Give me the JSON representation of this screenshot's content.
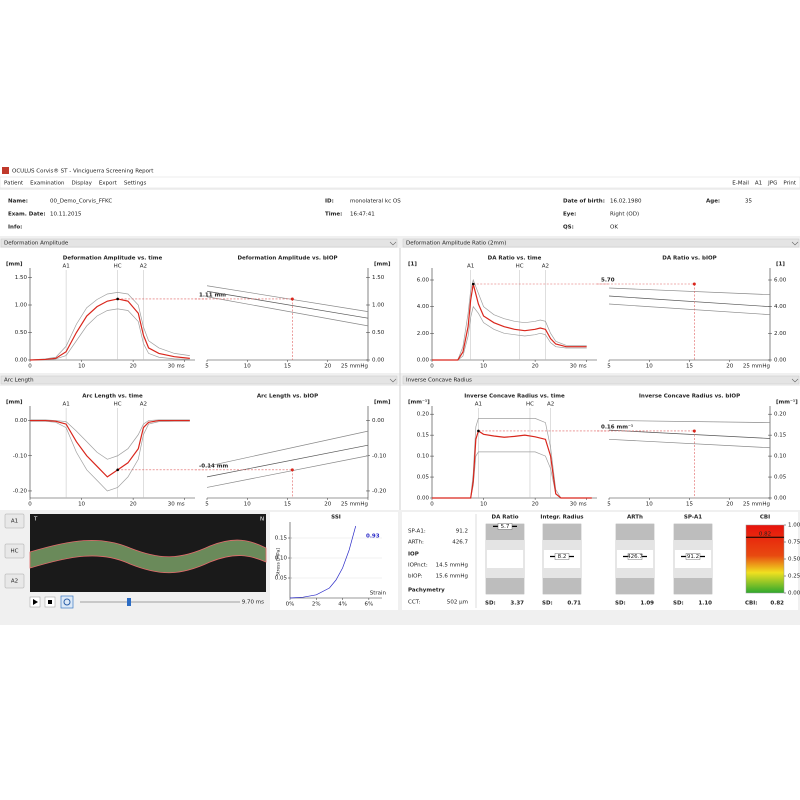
{
  "window": {
    "title": "OCULUS Corvis® ST - Vinciguerra Screening Report",
    "menu": [
      "Patient",
      "Examination",
      "Display",
      "Export",
      "Settings"
    ],
    "actions": [
      "E-Mail",
      "A1",
      "JPG",
      "Print"
    ]
  },
  "patient": {
    "name": {
      "label": "Name:",
      "value": "00_Demo_Corvis_FFKC"
    },
    "id": {
      "label": "ID:",
      "value": "monolateral kc OS"
    },
    "birth": {
      "label": "Date of birth:",
      "value": "16.02.1980"
    },
    "age": {
      "label": "Age:",
      "value": "35"
    },
    "exam_date": {
      "label": "Exam. Date:",
      "value": "10.11.2015"
    },
    "time": {
      "label": "Time:",
      "value": "16:47:41"
    },
    "eye": {
      "label": "Eye:",
      "value": "Right (OD)"
    },
    "info": {
      "label": "Info:"
    },
    "qs": {
      "label": "QS:",
      "value": "OK"
    }
  },
  "sections": [
    "Deformation Amplitude",
    "Deformation Amplitude Ratio (2mm)",
    "Arc Length",
    "Inverse Concave Radius"
  ],
  "chart_data": [
    {
      "type": "line",
      "title": "Deformation Amplitude vs. time",
      "y_label": "[mm]",
      "xlim": [
        0,
        32
      ],
      "ylim": [
        0,
        1.6
      ],
      "xticks": [
        0,
        10,
        20,
        {
          "value": 30,
          "label": "30 ms"
        }
      ],
      "yticks": [
        {
          "value": 0,
          "label": "0.00"
        },
        {
          "value": 0.5,
          "label": "0.50"
        },
        {
          "value": 1,
          "label": "1.00"
        },
        {
          "value": 1.5,
          "label": "1.50"
        }
      ],
      "x": [
        0,
        3,
        5,
        7,
        9,
        11,
        13,
        15,
        17,
        19,
        21,
        22,
        23,
        25,
        28,
        31
      ],
      "series": [
        {
          "color": "#a0a0a0",
          "values": [
            0,
            0.02,
            0.05,
            0.25,
            0.65,
            0.95,
            1.1,
            1.2,
            1.23,
            1.2,
            1.0,
            0.6,
            0.35,
            0.22,
            0.12,
            0.08
          ]
        },
        {
          "color": "#a0a0a0",
          "values": [
            0,
            0,
            0.02,
            0.08,
            0.35,
            0.62,
            0.8,
            0.9,
            0.93,
            0.9,
            0.7,
            0.3,
            0.12,
            0.05,
            0.02,
            0.01
          ]
        },
        {
          "color": "#d9261c",
          "values": [
            0,
            0.01,
            0.03,
            0.15,
            0.5,
            0.8,
            0.97,
            1.07,
            1.11,
            1.07,
            0.85,
            0.45,
            0.22,
            0.12,
            0.06,
            0.03
          ]
        }
      ],
      "events": [
        {
          "label": "A1",
          "x": 7
        },
        {
          "label": "HC",
          "x": 17
        },
        {
          "label": "A2",
          "x": 22
        }
      ],
      "annotation": {
        "label": "1.11 mm",
        "x": 17,
        "y": 1.11
      }
    },
    {
      "type": "line",
      "title": "Deformation Amplitude vs. bIOP",
      "y_label": "[mm]",
      "xlim": [
        5,
        25
      ],
      "ylim": [
        0,
        1.6
      ],
      "xticks": [
        5,
        10,
        15,
        20,
        {
          "value": 25,
          "label": "25 mmHg"
        }
      ],
      "yticks": [
        {
          "value": 0,
          "label": "0.00"
        },
        {
          "value": 0.5,
          "label": "0.50"
        },
        {
          "value": 1,
          "label": "1.00"
        },
        {
          "value": 1.5,
          "label": "1.50"
        }
      ],
      "x": [
        5,
        25
      ],
      "series": [
        {
          "color": "#888888",
          "values": [
            1.35,
            0.88
          ]
        },
        {
          "color": "#555555",
          "values": [
            1.25,
            0.76
          ]
        },
        {
          "color": "#888888",
          "values": [
            1.15,
            0.62
          ]
        }
      ],
      "point": {
        "x": 15.6,
        "y": 1.11
      }
    },
    {
      "type": "line",
      "title": "DA Ratio vs. time",
      "y_label": "[1]",
      "xlim": [
        0,
        32
      ],
      "ylim": [
        0,
        6.6
      ],
      "xticks": [
        0,
        10,
        20,
        {
          "value": 30,
          "label": "30 ms"
        }
      ],
      "yticks": [
        {
          "value": 0,
          "label": "0.00"
        },
        {
          "value": 2,
          "label": "2.00"
        },
        {
          "value": 4,
          "label": "4.00"
        },
        {
          "value": 6,
          "label": "6.00"
        }
      ],
      "x": [
        0,
        3,
        5,
        6,
        7,
        7.5,
        8,
        9,
        10,
        12,
        14,
        16,
        18,
        20,
        21,
        22,
        23,
        24,
        26,
        30
      ],
      "series": [
        {
          "color": "#a0a0a0",
          "values": [
            0,
            0,
            0,
            1.0,
            3.5,
            5.2,
            6.0,
            5.0,
            4.0,
            3.4,
            3.1,
            2.9,
            2.8,
            2.9,
            3.0,
            2.9,
            2.0,
            1.4,
            1.1,
            1.1
          ]
        },
        {
          "color": "#a0a0a0",
          "values": [
            0,
            0,
            0,
            0.3,
            1.8,
            3.2,
            4.0,
            3.5,
            2.8,
            2.3,
            2.0,
            1.9,
            1.8,
            1.9,
            2.0,
            1.9,
            1.3,
            1.0,
            0.9,
            0.9
          ]
        },
        {
          "color": "#d9261c",
          "values": [
            0,
            0,
            0,
            0.6,
            2.5,
            4.5,
            5.7,
            4.2,
            3.3,
            2.8,
            2.5,
            2.3,
            2.2,
            2.3,
            2.4,
            2.3,
            1.6,
            1.2,
            1.0,
            1.0
          ]
        }
      ],
      "events": [
        {
          "label": "A1",
          "x": 7.5
        },
        {
          "label": "HC",
          "x": 17
        },
        {
          "label": "A2",
          "x": 22
        }
      ],
      "annotation": {
        "label": "5.70",
        "x": 8,
        "y": 5.7
      }
    },
    {
      "type": "line",
      "title": "DA Ratio vs. bIOP",
      "y_label": "[1]",
      "xlim": [
        5,
        25
      ],
      "ylim": [
        0,
        6.6
      ],
      "xticks": [
        5,
        10,
        15,
        20,
        {
          "value": 25,
          "label": "25 mmHg"
        }
      ],
      "yticks": [
        {
          "value": 0,
          "label": "0.00"
        },
        {
          "value": 2,
          "label": "2.00"
        },
        {
          "value": 4,
          "label": "4.00"
        },
        {
          "value": 6,
          "label": "6.00"
        }
      ],
      "x": [
        5,
        25
      ],
      "series": [
        {
          "color": "#888888",
          "values": [
            5.4,
            4.9
          ]
        },
        {
          "color": "#555555",
          "values": [
            4.8,
            4.0
          ]
        },
        {
          "color": "#888888",
          "values": [
            4.2,
            3.4
          ]
        }
      ],
      "point": {
        "x": 15.6,
        "y": 5.7
      }
    },
    {
      "type": "line",
      "title": "Arc Length vs. time",
      "y_label": "[mm]",
      "xlim": [
        0,
        32
      ],
      "ylim": [
        -0.22,
        0.03
      ],
      "xticks": [
        0,
        10,
        20,
        {
          "value": 30,
          "label": "30 ms"
        }
      ],
      "yticks": [
        {
          "value": -0.2,
          "label": "-0.20"
        },
        {
          "value": -0.1,
          "label": "-0.10"
        },
        {
          "value": 0,
          "label": "0.00"
        }
      ],
      "x": [
        0,
        3,
        5,
        7,
        9,
        11,
        13,
        15,
        17,
        19,
        21,
        22,
        23,
        25,
        28,
        31
      ],
      "series": [
        {
          "color": "#a0a0a0",
          "values": [
            0.002,
            0.002,
            0,
            -0.003,
            -0.03,
            -0.06,
            -0.09,
            -0.11,
            -0.1,
            -0.08,
            -0.04,
            -0.01,
            0,
            0.002,
            0.002,
            0.002
          ]
        },
        {
          "color": "#a0a0a0",
          "values": [
            -0.002,
            -0.002,
            -0.005,
            -0.02,
            -0.09,
            -0.14,
            -0.17,
            -0.2,
            -0.19,
            -0.16,
            -0.11,
            -0.04,
            -0.01,
            -0.003,
            -0.002,
            -0.002
          ]
        },
        {
          "color": "#d9261c",
          "values": [
            0,
            0,
            -0.002,
            -0.01,
            -0.06,
            -0.1,
            -0.13,
            -0.16,
            -0.14,
            -0.12,
            -0.08,
            -0.02,
            -0.005,
            0,
            0,
            0
          ]
        }
      ],
      "events": [
        {
          "label": "A1",
          "x": 7
        },
        {
          "label": "HC",
          "x": 17
        },
        {
          "label": "A2",
          "x": 22
        }
      ],
      "annotation": {
        "label": "-0.14 mm",
        "x": 17,
        "y": -0.14
      }
    },
    {
      "type": "line",
      "title": "Arc Length vs. bIOP",
      "y_label": "[mm]",
      "xlim": [
        5,
        25
      ],
      "ylim": [
        -0.22,
        0.03
      ],
      "xticks": [
        5,
        10,
        15,
        20,
        {
          "value": 25,
          "label": "25 mmHg"
        }
      ],
      "yticks": [
        {
          "value": -0.2,
          "label": "-0.20"
        },
        {
          "value": -0.1,
          "label": "-0.10"
        },
        {
          "value": 0,
          "label": "0.00"
        }
      ],
      "x": [
        5,
        25
      ],
      "series": [
        {
          "color": "#888888",
          "values": [
            -0.13,
            -0.03
          ]
        },
        {
          "color": "#555555",
          "values": [
            -0.16,
            -0.07
          ]
        },
        {
          "color": "#888888",
          "values": [
            -0.19,
            -0.1
          ]
        }
      ],
      "point": {
        "x": 15.6,
        "y": -0.14
      }
    },
    {
      "type": "line",
      "title": "Inverse Concave Radius vs. time",
      "y_label": "[mm⁻¹]",
      "xlim": [
        0,
        32
      ],
      "ylim": [
        0,
        0.21
      ],
      "xticks": [
        0,
        10,
        20,
        {
          "value": 30,
          "label": "30 ms"
        }
      ],
      "yticks": [
        {
          "value": 0,
          "label": "0.00"
        },
        {
          "value": 0.05,
          "label": "0.05"
        },
        {
          "value": 0.1,
          "label": "0.10"
        },
        {
          "value": 0.15,
          "label": "0.15"
        },
        {
          "value": 0.2,
          "label": "0.20"
        }
      ],
      "x": [
        0,
        3,
        6,
        7.5,
        8,
        8.5,
        9,
        10,
        12,
        14,
        16,
        18,
        20,
        22,
        23,
        24,
        25,
        28,
        31
      ],
      "series": [
        {
          "color": "#a0a0a0",
          "values": [
            0,
            0,
            0,
            0,
            0.06,
            0.17,
            0.19,
            0.19,
            0.19,
            0.19,
            0.19,
            0.19,
            0.19,
            0.18,
            0.12,
            0.02,
            0,
            0,
            0
          ]
        },
        {
          "color": "#a0a0a0",
          "values": [
            0,
            0,
            0,
            0,
            0.03,
            0.1,
            0.11,
            0.11,
            0.11,
            0.11,
            0.11,
            0.11,
            0.11,
            0.1,
            0.07,
            0.01,
            0,
            0,
            0
          ]
        },
        {
          "color": "#d9261c",
          "values": [
            0,
            0,
            0,
            0,
            0.04,
            0.14,
            0.16,
            0.152,
            0.148,
            0.145,
            0.147,
            0.15,
            0.146,
            0.14,
            0.1,
            0.01,
            0,
            0,
            0
          ]
        }
      ],
      "events": [
        {
          "label": "A1",
          "x": 9
        },
        {
          "label": "HC",
          "x": 19
        },
        {
          "label": "A2",
          "x": 23
        }
      ],
      "annotation": {
        "label": "0.16 mm⁻¹",
        "x": 9,
        "y": 0.16
      }
    },
    {
      "type": "line",
      "title": "Inverse Concave Radius vs. bIOP",
      "y_label": "[mm⁻¹]",
      "xlim": [
        5,
        25
      ],
      "ylim": [
        0,
        0.21
      ],
      "xticks": [
        5,
        10,
        15,
        20,
        {
          "value": 25,
          "label": "25 mmHg"
        }
      ],
      "yticks": [
        {
          "value": 0,
          "label": "0.00"
        },
        {
          "value": 0.05,
          "label": "0.05"
        },
        {
          "value": 0.1,
          "label": "0.10"
        },
        {
          "value": 0.15,
          "label": "0.15"
        },
        {
          "value": 0.2,
          "label": "0.20"
        }
      ],
      "x": [
        5,
        25
      ],
      "series": [
        {
          "color": "#888888",
          "values": [
            0.185,
            0.18
          ]
        },
        {
          "color": "#555555",
          "values": [
            0.162,
            0.142
          ]
        },
        {
          "color": "#888888",
          "values": [
            0.14,
            0.12
          ]
        }
      ],
      "point": {
        "x": 15.6,
        "y": 0.16
      }
    },
    {
      "type": "line",
      "title": "SSI",
      "y_label": "Stress [MPa]",
      "x_label": "Strain",
      "ssi_value": "0.93",
      "xlim": [
        0,
        7
      ],
      "ylim": [
        0,
        0.18
      ],
      "xticks": [
        {
          "value": 0,
          "label": "0%"
        },
        {
          "value": 2,
          "label": "2%"
        },
        {
          "value": 4,
          "label": "4%"
        },
        {
          "value": 6,
          "label": "6%"
        }
      ],
      "yticks": [
        {
          "value": 0.05,
          "label": "0.05"
        },
        {
          "value": 0.1,
          "label": "0.10"
        },
        {
          "value": 0.15,
          "label": "0.15"
        }
      ],
      "x": [
        0,
        1,
        2,
        3,
        3.5,
        4,
        4.5,
        5
      ],
      "series": [
        {
          "color": "#2b2bc8",
          "values": [
            0,
            0.002,
            0.008,
            0.025,
            0.045,
            0.075,
            0.12,
            0.18
          ]
        }
      ]
    }
  ],
  "viewer": {
    "buttons": [
      "A1",
      "HC",
      "A2"
    ],
    "left": "T",
    "right": "N",
    "time": "9.70 ms"
  },
  "parameters": {
    "sp_a1": {
      "label": "SP-A1:",
      "value": "91.2"
    },
    "arth": {
      "label": "ARTh:",
      "value": "426.7"
    },
    "iop_header": "IOP",
    "iopnct": {
      "label": "IOPnct:",
      "value": "14.5 mmHg"
    },
    "biop": {
      "label": "bIOP:",
      "value": "15.6 mmHg"
    },
    "pachy_header": "Pachymetry",
    "cct": {
      "label": "CCT:",
      "value": "502 µm"
    }
  },
  "gauges": [
    {
      "title": "DA Ratio",
      "reading": "5.7",
      "sd_label": "SD:",
      "sd": "3.37"
    },
    {
      "title": "Integr. Radius",
      "reading": "8.2",
      "sd_label": "SD:",
      "sd": "0.71"
    },
    {
      "title": "ARTh",
      "reading": "426.7",
      "sd_label": "SD:",
      "sd": "1.09"
    },
    {
      "title": "SP-A1",
      "reading": "91.2",
      "sd_label": "SD:",
      "sd": "1.10"
    }
  ],
  "cbi": {
    "title": "CBI",
    "label": "CBI:",
    "value": 0.82,
    "value_label": "0.82",
    "ticks": [
      {
        "value": 1,
        "label": "1.00"
      },
      {
        "value": 0.75,
        "label": "0.75"
      },
      {
        "value": 0.5,
        "label": "0.50"
      },
      {
        "value": 0.25,
        "label": "0.25"
      },
      {
        "value": 0,
        "label": "0.00"
      }
    ]
  }
}
